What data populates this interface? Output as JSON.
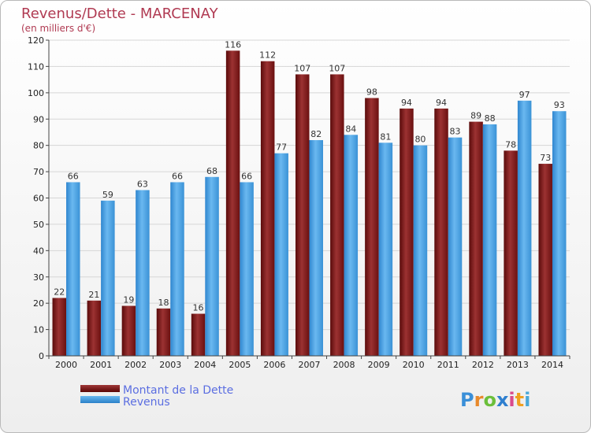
{
  "chart_data": {
    "type": "bar",
    "title": "Revenus/Dette - MARCENAY",
    "subtitle": "(en milliers d'€)",
    "categories": [
      "2000",
      "2001",
      "2002",
      "2003",
      "2004",
      "2005",
      "2006",
      "2007",
      "2008",
      "2009",
      "2010",
      "2011",
      "2012",
      "2013",
      "2014"
    ],
    "series": [
      {
        "name": "Montant de la Dette",
        "color": "#7a1414",
        "values": [
          22,
          21,
          19,
          18,
          16,
          116,
          112,
          107,
          107,
          98,
          94,
          94,
          89,
          78,
          73
        ]
      },
      {
        "name": "Revenus",
        "color": "#4da3e6",
        "values": [
          66,
          59,
          63,
          66,
          68,
          66,
          77,
          82,
          84,
          81,
          80,
          83,
          88,
          97,
          93
        ]
      }
    ],
    "ylim": [
      0,
      120
    ],
    "yticks": [
      0,
      10,
      20,
      30,
      40,
      50,
      60,
      70,
      80,
      90,
      100,
      110,
      120
    ],
    "grid": true,
    "legend": "bottom-left"
  },
  "logo": {
    "text": "Proxiti",
    "colors": [
      "#3a8fd8",
      "#e8892b",
      "#6bbf3b",
      "#2f7fcf",
      "#d94a8c",
      "#f0a020",
      "#4aa8d8"
    ]
  }
}
